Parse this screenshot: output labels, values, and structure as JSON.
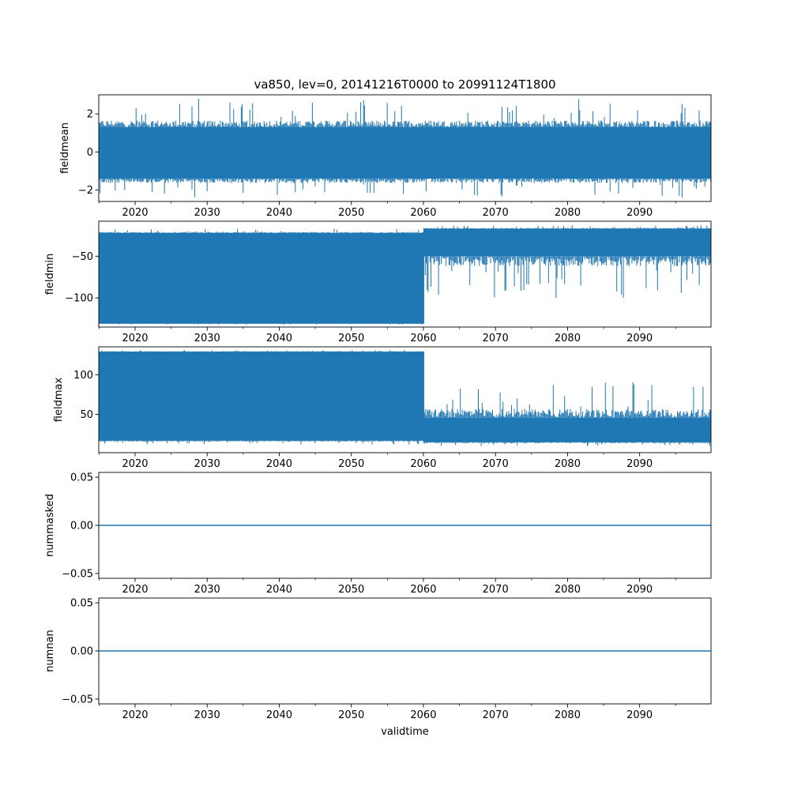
{
  "figure": {
    "title": "va850, lev=0, 20141216T0000 to 20991124T1800",
    "xlabel": "validtime",
    "line_color": "#1f77b4"
  },
  "chart_data": [
    {
      "type": "line",
      "name": "fieldmean",
      "ylabel": "fieldmean",
      "xlim": [
        2014.96,
        2099.9
      ],
      "ylim": [
        -2.6,
        3.0
      ],
      "x_ticks": [
        2020,
        2030,
        2040,
        2050,
        2060,
        2070,
        2080,
        2090
      ],
      "y_ticks": [
        -2,
        0,
        2
      ],
      "y_tick_labels": [
        "−2",
        "0",
        "2"
      ],
      "band": {
        "x": [
          2015,
          2060,
          2099.9
        ],
        "typical_upper": [
          1.3,
          1.3,
          1.2
        ],
        "typical_lower": [
          -1.4,
          -1.4,
          -1.4
        ],
        "peak_max": 2.8,
        "peak_min": -2.4
      }
    },
    {
      "type": "line",
      "name": "fieldmin",
      "ylabel": "fieldmin",
      "xlim": [
        2014.96,
        2099.9
      ],
      "ylim": [
        -135,
        -8
      ],
      "x_ticks": [
        2020,
        2030,
        2040,
        2050,
        2060,
        2070,
        2080,
        2090
      ],
      "y_ticks": [
        -100,
        -50
      ],
      "y_tick_labels": [
        "−100",
        "−50"
      ],
      "segments": [
        {
          "x_range": [
            2015,
            2060
          ],
          "typical_upper": -22,
          "typical_lower": -131,
          "peak_max": -17,
          "peak_min": -132
        },
        {
          "x_range": [
            2060,
            2099.9
          ],
          "typical_upper": -17,
          "typical_lower": -50,
          "peak_max": -13,
          "peak_min": -101
        }
      ]
    },
    {
      "type": "line",
      "name": "fieldmax",
      "ylabel": "fieldmax",
      "xlim": [
        2014.96,
        2099.9
      ],
      "ylim": [
        2,
        135
      ],
      "x_ticks": [
        2020,
        2030,
        2040,
        2050,
        2060,
        2070,
        2080,
        2090
      ],
      "y_ticks": [
        50,
        100
      ],
      "y_tick_labels": [
        "50",
        "100"
      ],
      "segments": [
        {
          "x_range": [
            2015,
            2060
          ],
          "typical_upper": 129,
          "typical_lower": 17,
          "peak_max": 131,
          "peak_min": 12
        },
        {
          "x_range": [
            2060,
            2099.9
          ],
          "typical_upper": 46,
          "typical_lower": 15,
          "peak_max": 93,
          "peak_min": 10
        }
      ]
    },
    {
      "type": "line",
      "name": "nummasked",
      "ylabel": "nummasked",
      "xlim": [
        2014.96,
        2099.9
      ],
      "ylim": [
        -0.055,
        0.055
      ],
      "x_ticks": [
        2020,
        2030,
        2040,
        2050,
        2060,
        2070,
        2080,
        2090
      ],
      "y_ticks": [
        -0.05,
        0.0,
        0.05
      ],
      "y_tick_labels": [
        "−0.05",
        "0.00",
        "0.05"
      ],
      "constant": 0.0
    },
    {
      "type": "line",
      "name": "numnan",
      "ylabel": "numnan",
      "xlim": [
        2014.96,
        2099.9
      ],
      "ylim": [
        -0.055,
        0.055
      ],
      "x_ticks": [
        2020,
        2030,
        2040,
        2050,
        2060,
        2070,
        2080,
        2090
      ],
      "y_ticks": [
        -0.05,
        0.0,
        0.05
      ],
      "y_tick_labels": [
        "−0.05",
        "0.00",
        "0.05"
      ],
      "constant": 0.0
    }
  ]
}
